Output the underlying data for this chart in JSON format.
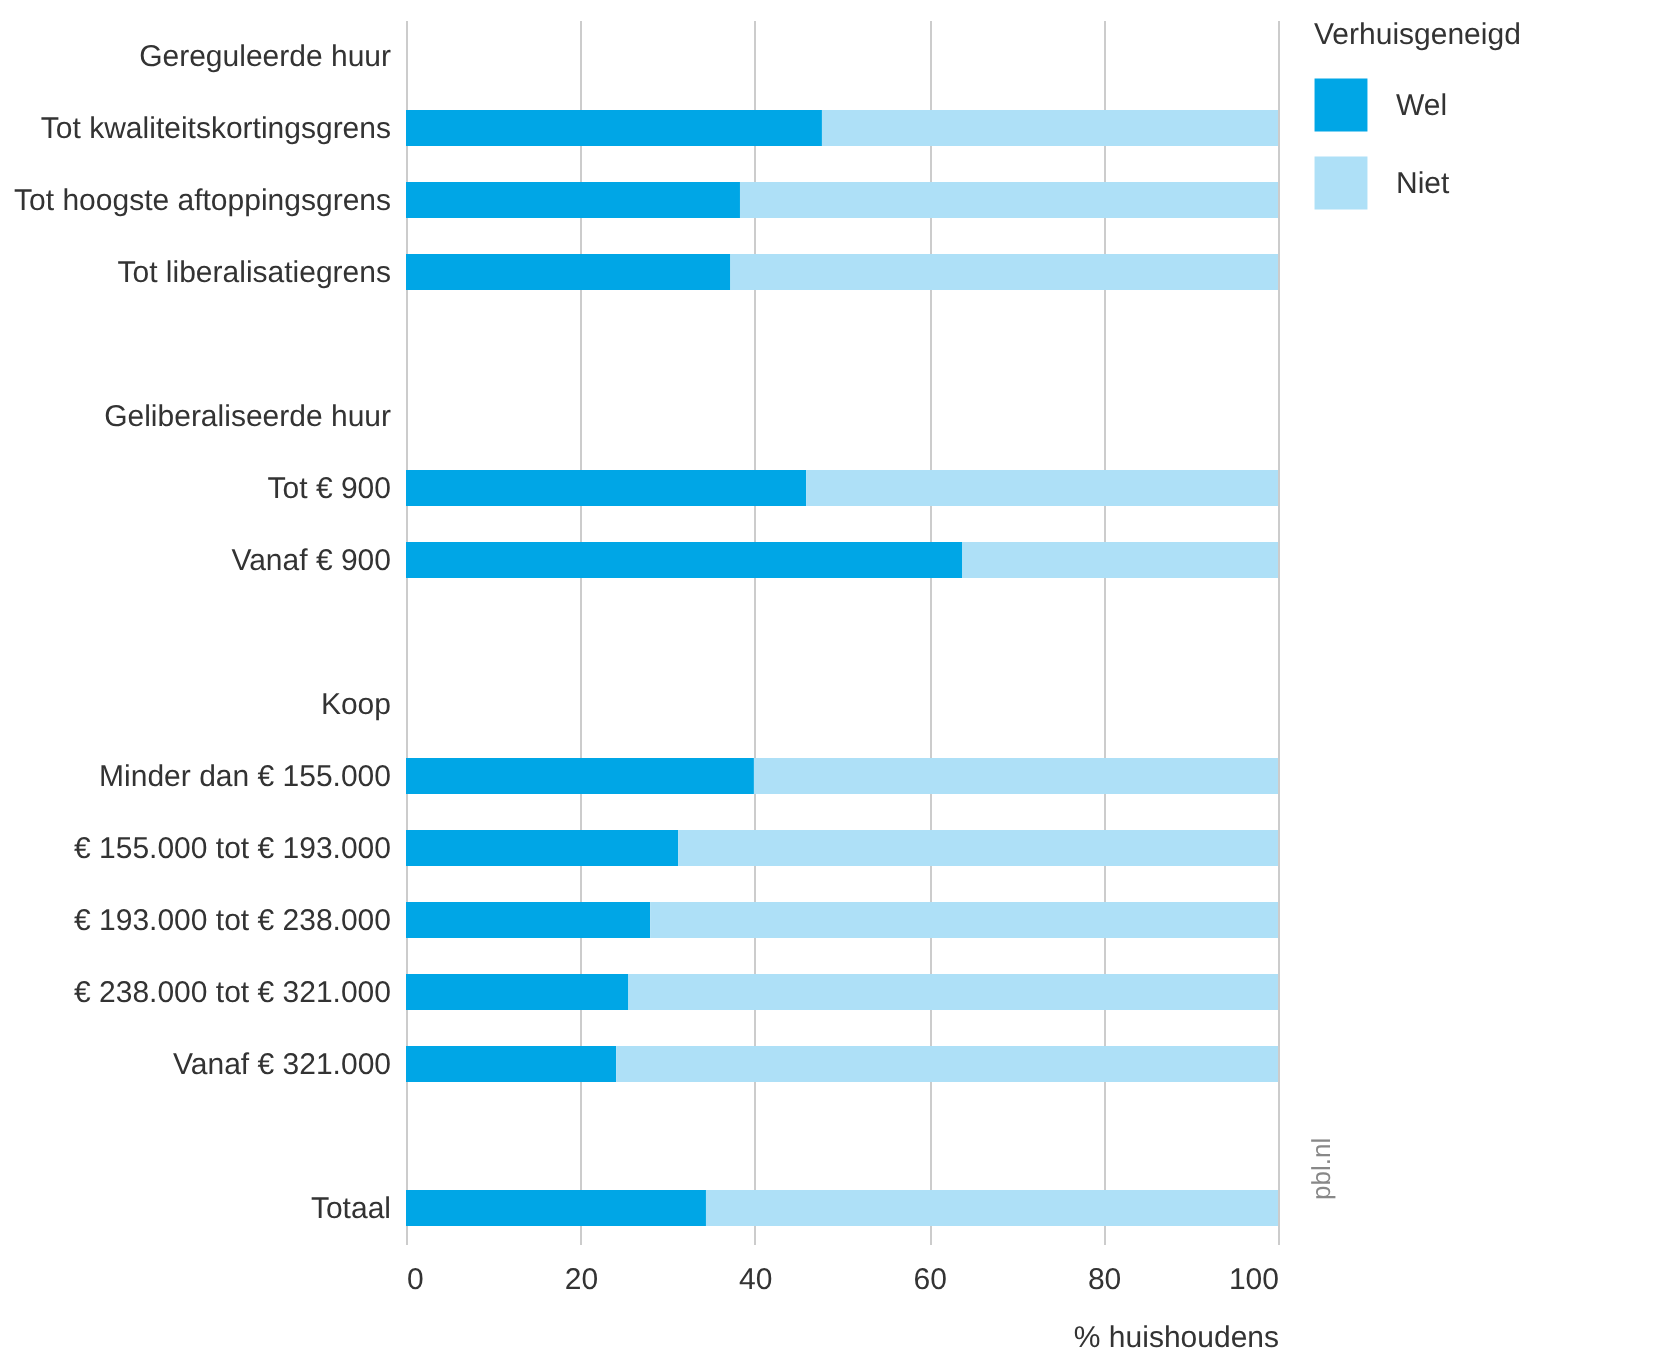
{
  "chart_data": {
    "type": "bar",
    "orientation": "horizontal",
    "stacked": true,
    "categories": [
      "Gereguleerde huur",
      "Tot kwaliteitskortingsgrens",
      "Tot hoogste aftoppingsgrens",
      "Tot liberalisatiegrens",
      null,
      "Geliberaliseerde huur",
      "Tot € 900",
      "Vanaf € 900",
      null,
      "Koop",
      "Minder dan € 155.000",
      "€ 155.000 tot € 193.000",
      "€ 193.000 tot € 238.000",
      "€ 238.000 tot € 321.000",
      "Vanaf € 321.000",
      null,
      "Totaal"
    ],
    "series": [
      {
        "name": "Wel",
        "color": "#00a6e6",
        "values": [
          null,
          47.7,
          38.3,
          37.2,
          null,
          null,
          45.9,
          63.8,
          null,
          null,
          39.9,
          31.2,
          28,
          25.5,
          24.1,
          null,
          34.4
        ]
      },
      {
        "name": "Niet",
        "color": "#aee0f7",
        "values": [
          null,
          52.3,
          61.7,
          62.8,
          null,
          null,
          54.1,
          36.2,
          null,
          null,
          60.1,
          68.8,
          72,
          74.5,
          75.9,
          null,
          65.6
        ]
      }
    ],
    "xlim": [
      0,
      100
    ],
    "xticks": [
      0,
      20,
      40,
      60,
      80,
      100
    ],
    "xlabel": "% huishoudens",
    "legend_title": "Verhuisgeneigd",
    "legend": "top right",
    "grid": "x",
    "annotations": [
      "pbl.nl"
    ]
  }
}
